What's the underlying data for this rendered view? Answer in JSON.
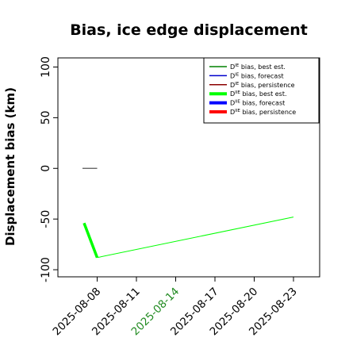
{
  "chart_data": {
    "type": "line",
    "title": "Bias, ice edge displacement",
    "xlabel": "",
    "ylabel": "Displacement bias (km)",
    "x_axis": {
      "type": "date",
      "range": [
        "2025-08-05",
        "2025-08-25"
      ],
      "ticks": [
        "2025-08-08",
        "2025-08-11",
        "2025-08-14",
        "2025-08-17",
        "2025-08-20",
        "2025-08-23"
      ],
      "highlighted_tick": "2025-08-14",
      "highlight_color": "#228B22"
    },
    "y_axis": {
      "range": [
        -107,
        109
      ],
      "ticks": [
        -100,
        -50,
        0,
        50,
        100
      ]
    },
    "grid": false,
    "legend_position": "top-right",
    "series": [
      {
        "id": "d_ie_best",
        "name": "D^IE bias, best est.",
        "base": "D",
        "sup": "IE",
        "suffix": " bias, best est.",
        "color": "#008000",
        "width": "thin",
        "points": []
      },
      {
        "id": "d_ie_forecast",
        "name": "D^IE bias, forecast",
        "base": "D",
        "sup": "IE",
        "suffix": " bias, forecast",
        "color": "#0000cc",
        "width": "thin",
        "points": []
      },
      {
        "id": "d_ie_persistence",
        "name": "D^IE bias, persistence",
        "base": "D",
        "sup": "IE",
        "suffix": " bias, persistence",
        "color": "#8b0000",
        "width": "thin",
        "points": []
      },
      {
        "id": "d_iie_best",
        "name": "D^IIE bias, best est.",
        "base": "D",
        "sup": "IIE",
        "suffix": " bias, best est.",
        "color": "#00ff00",
        "width": "thick",
        "points": [
          {
            "x": "2025-08-07",
            "y": -54
          },
          {
            "x": "2025-08-08",
            "y": -88
          },
          {
            "x": "2025-08-23",
            "y": -48
          }
        ]
      },
      {
        "id": "d_iie_forecast",
        "name": "D^IIE bias, forecast",
        "base": "D",
        "sup": "IIE",
        "suffix": " bias, forecast",
        "color": "#0000ff",
        "width": "thick",
        "points": []
      },
      {
        "id": "d_iie_persistence",
        "name": "D^IIE bias, persistence",
        "base": "D",
        "sup": "IIE",
        "suffix": " bias, persistence",
        "color": "#ff0000",
        "width": "thick",
        "points": []
      }
    ],
    "annotations": [
      {
        "type": "segment",
        "x_start": "2025-08-07",
        "x_end": "2025-08-08",
        "y": 0,
        "color": "#555555"
      }
    ]
  }
}
